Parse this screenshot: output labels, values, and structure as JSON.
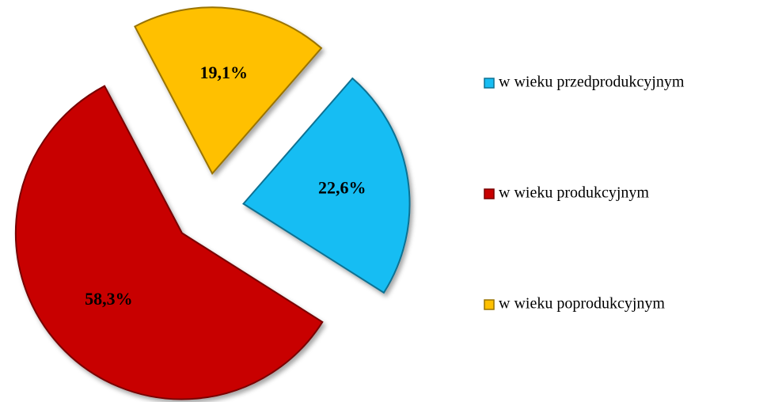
{
  "chart_data": {
    "type": "pie",
    "categories": [
      "w wieku przedprodukcyjnym",
      "w wieku produkcyjnym",
      "w wieku poprodukcyjnym"
    ],
    "values": [
      22.6,
      58.3,
      19.1
    ],
    "value_labels": [
      "22,6%",
      "58,3%",
      "19,1%"
    ],
    "colors": [
      "#17bdf3",
      "#c80000",
      "#ffc000"
    ],
    "legend": "right"
  }
}
